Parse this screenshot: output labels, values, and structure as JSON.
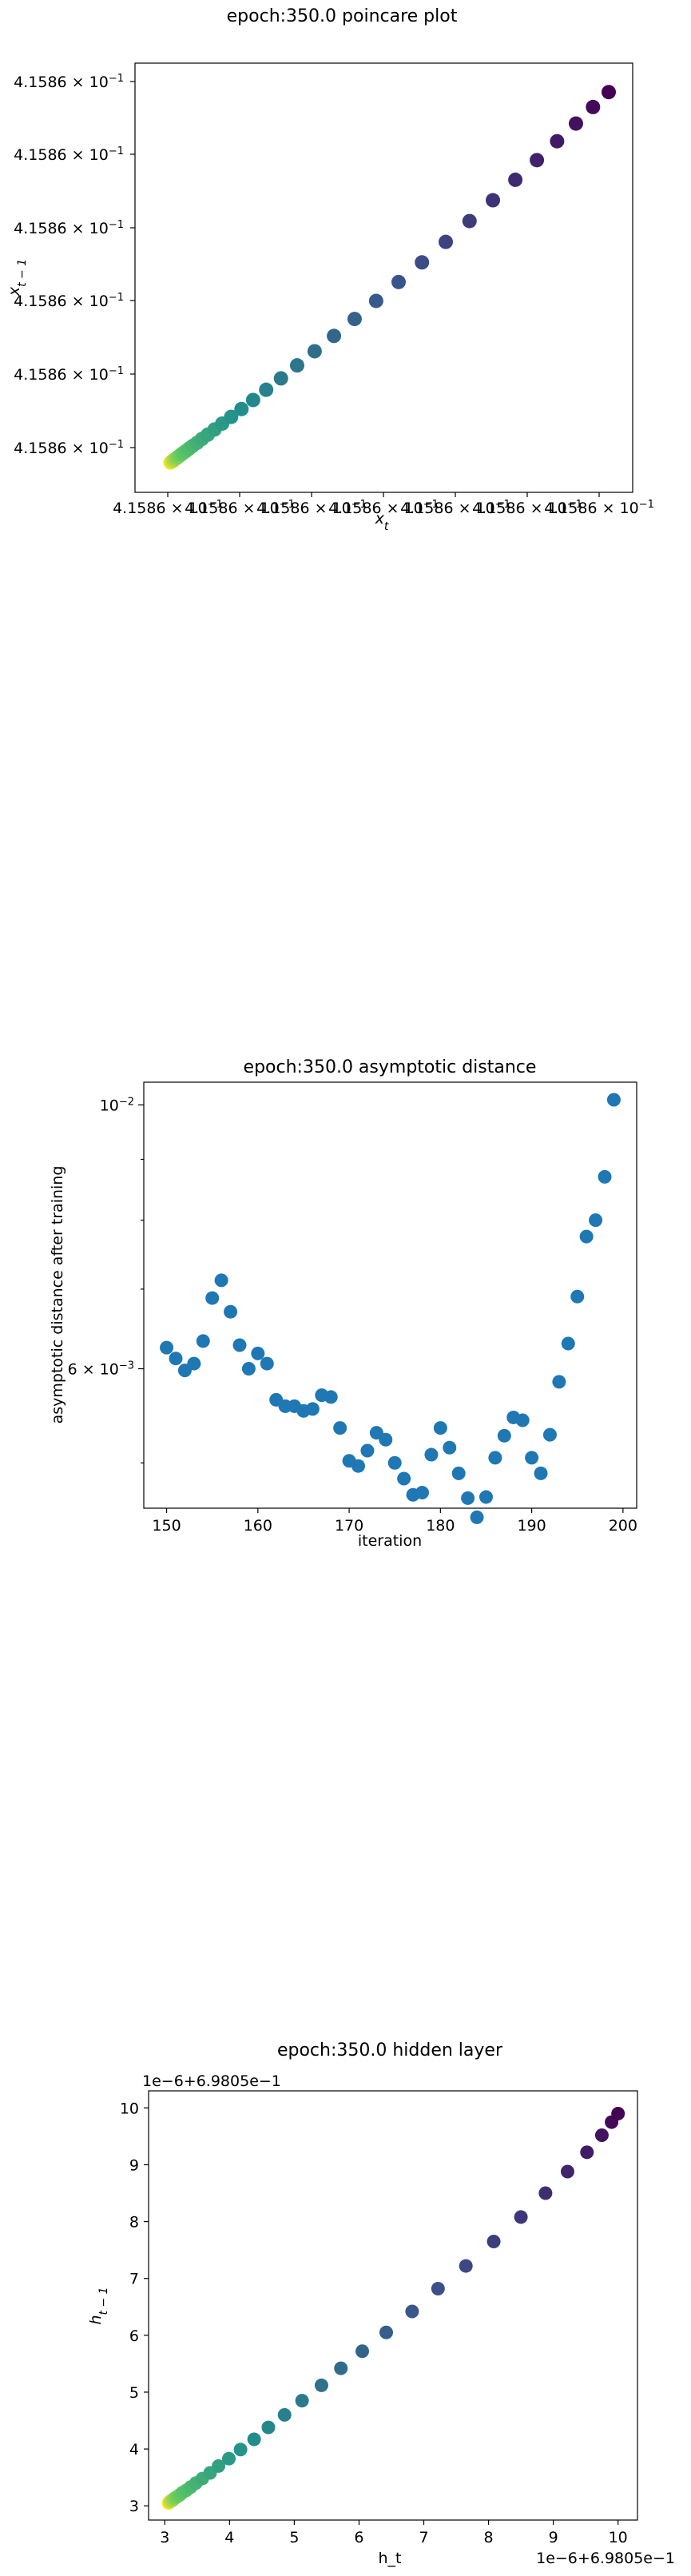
{
  "chart_data": [
    {
      "type": "scatter",
      "title": "epoch:350.0 poincare plot",
      "xlabel": "x_t",
      "ylabel": "x_{t-1}",
      "x_tick_labels": [
        "4.1586 × 10^-1",
        "4.1586 × 10^-1",
        "4.1586 × 10^-1",
        "4.1586 × 10^-1",
        "4.1586 × 10^-1",
        "4.1586 × 10^-1",
        "4.1586 × 10^-1"
      ],
      "y_tick_labels": [
        "4.1586 × 10^-1",
        "4.1586 × 10^-1",
        "4.1586 × 10^-1",
        "4.1586 × 10^-1",
        "4.1586 × 10^-1",
        "4.1586 × 10^-1"
      ],
      "colormap": "viridis",
      "note_points": "points along the diagonal; index 0 = dark purple (top-right), last = yellow (bottom-left)",
      "x": [
        1.0,
        0.965,
        0.927,
        0.885,
        0.84,
        0.792,
        0.742,
        0.69,
        0.637,
        0.584,
        0.532,
        0.482,
        0.434,
        0.388,
        0.345,
        0.306,
        0.27,
        0.237,
        0.208,
        0.182,
        0.159,
        0.139,
        0.122,
        0.107,
        0.094,
        0.083,
        0.073,
        0.065,
        0.058,
        0.052,
        0.047,
        0.043,
        0.039,
        0.036,
        0.033,
        0.031,
        0.029,
        0.027,
        0.025,
        0.024
      ],
      "y": [
        0.965,
        0.927,
        0.885,
        0.84,
        0.792,
        0.742,
        0.69,
        0.637,
        0.584,
        0.532,
        0.482,
        0.434,
        0.388,
        0.345,
        0.306,
        0.27,
        0.237,
        0.208,
        0.182,
        0.159,
        0.139,
        0.122,
        0.107,
        0.094,
        0.083,
        0.073,
        0.065,
        0.058,
        0.052,
        0.047,
        0.043,
        0.039,
        0.036,
        0.033,
        0.031,
        0.029,
        0.027,
        0.025,
        0.024,
        0.023
      ]
    },
    {
      "type": "scatter",
      "title": "epoch:350.0 asymptotic distance",
      "xlabel": "iteration",
      "ylabel": "asymptotic distance after training",
      "xlim": [
        147.5,
        201.5
      ],
      "xticks": [
        150,
        160,
        170,
        180,
        190,
        200
      ],
      "yscale": "log",
      "ylim": [
        0.00458,
        0.01045
      ],
      "yticks": [
        {
          "value": 0.006,
          "label": "6 × 10^-3"
        },
        {
          "value": 0.01,
          "label": "10^-2"
        }
      ],
      "color": "#1f77b4",
      "x": [
        150,
        151,
        152,
        153,
        154,
        155,
        156,
        157,
        158,
        159,
        160,
        161,
        162,
        163,
        164,
        165,
        166,
        167,
        168,
        169,
        170,
        171,
        172,
        173,
        174,
        175,
        176,
        177,
        178,
        179,
        180,
        181,
        182,
        183,
        184,
        185,
        186,
        187,
        188,
        189,
        190,
        191,
        192,
        193,
        194,
        195,
        196,
        197,
        198,
        199
      ],
      "y": [
        0.00625,
        0.00612,
        0.00598,
        0.00606,
        0.00633,
        0.00688,
        0.00712,
        0.0067,
        0.00628,
        0.006,
        0.00618,
        0.00606,
        0.00565,
        0.00558,
        0.00558,
        0.00553,
        0.00555,
        0.0057,
        0.00568,
        0.00535,
        0.00502,
        0.00497,
        0.00512,
        0.0053,
        0.00523,
        0.005,
        0.00485,
        0.0047,
        0.00472,
        0.00508,
        0.00535,
        0.00515,
        0.0049,
        0.00467,
        0.0045,
        0.00468,
        0.00505,
        0.00527,
        0.00546,
        0.00543,
        0.00505,
        0.0049,
        0.00528,
        0.00585,
        0.0063,
        0.0069,
        0.00775,
        0.008,
        0.0087,
        0.0101
      ]
    },
    {
      "type": "scatter",
      "title": "epoch:350.0 hidden layer",
      "xlabel": "h_t",
      "ylabel": "h_{t-1}",
      "x_offset_label": "1e−6+6.9805e−1",
      "y_offset_label": "1e−6+6.9805e−1",
      "xlim": [
        2.75,
        10.3
      ],
      "ylim": [
        2.75,
        10.3
      ],
      "xticks": [
        3,
        4,
        5,
        6,
        7,
        8,
        9,
        10
      ],
      "yticks": [
        3,
        4,
        5,
        6,
        7,
        8,
        9,
        10
      ],
      "colormap": "viridis",
      "x": [
        10.0,
        9.9,
        9.75,
        9.52,
        9.22,
        8.88,
        8.5,
        8.08,
        7.65,
        7.22,
        6.82,
        6.42,
        6.05,
        5.72,
        5.42,
        5.12,
        4.85,
        4.6,
        4.38,
        4.17,
        3.99,
        3.83,
        3.7,
        3.58,
        3.48,
        3.4,
        3.33,
        3.27,
        3.23,
        3.19,
        3.16,
        3.14,
        3.12,
        3.1,
        3.09,
        3.08,
        3.07,
        3.06
      ],
      "y": [
        9.9,
        9.75,
        9.52,
        9.22,
        8.88,
        8.5,
        8.08,
        7.65,
        7.22,
        6.82,
        6.42,
        6.05,
        5.72,
        5.42,
        5.12,
        4.85,
        4.6,
        4.38,
        4.17,
        3.99,
        3.83,
        3.7,
        3.58,
        3.48,
        3.4,
        3.33,
        3.27,
        3.23,
        3.19,
        3.16,
        3.14,
        3.12,
        3.1,
        3.09,
        3.08,
        3.07,
        3.06,
        3.05
      ]
    }
  ]
}
